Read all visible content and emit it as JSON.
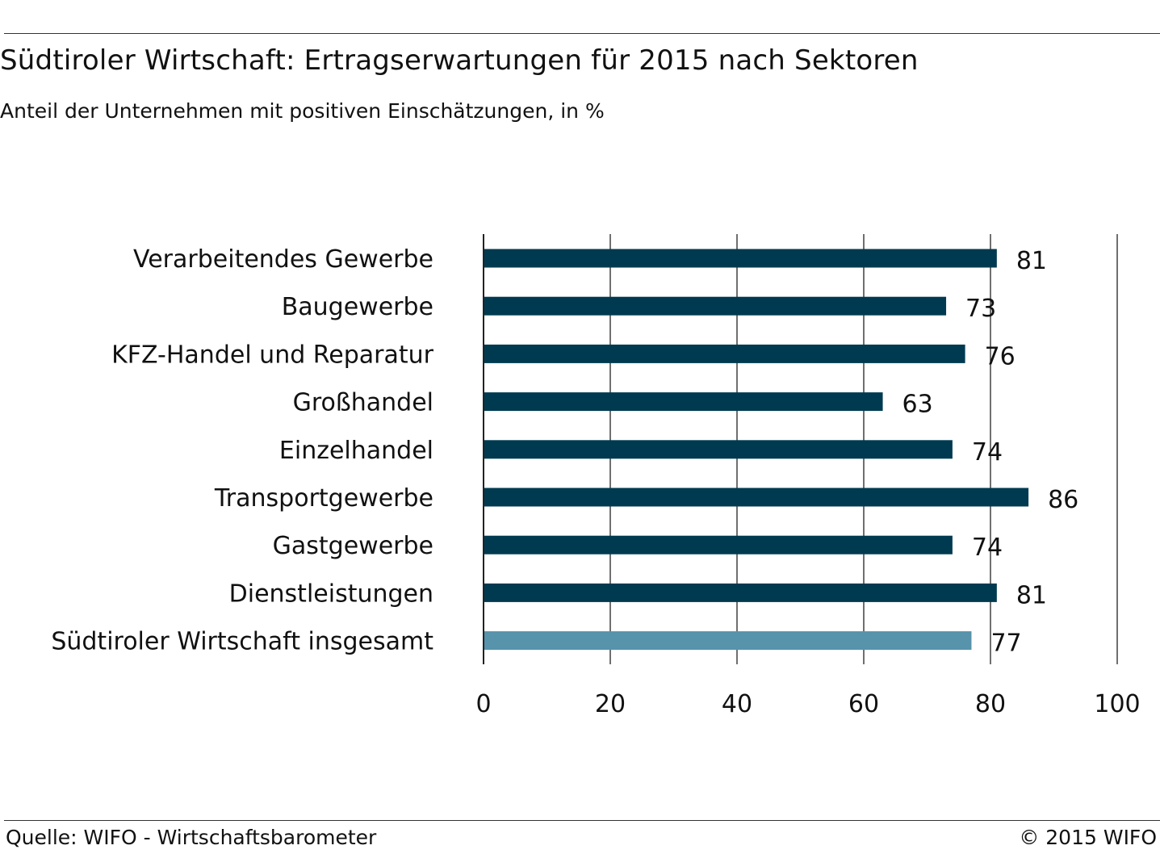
{
  "header": {
    "title": "Südtiroler Wirtschaft: Ertragserwartungen für 2015 nach Sektoren",
    "subtitle": "Anteil der Unternehmen mit positiven Einschätzungen, in %"
  },
  "footer": {
    "source": "Quelle: WIFO - Wirtschaftsbarometer",
    "copyright": "© 2015 WIFO"
  },
  "colors": {
    "bar_primary": "#003a50",
    "bar_total": "#5793ab",
    "grid": "#222222"
  },
  "chart_data": {
    "type": "bar",
    "orientation": "horizontal",
    "title": "Südtiroler Wirtschaft: Ertragserwartungen für 2015 nach Sektoren",
    "subtitle": "Anteil der Unternehmen mit positiven Einschätzungen, in %",
    "categories": [
      "Verarbeitendes Gewerbe",
      "Baugewerbe",
      "KFZ-Handel und Reparatur",
      "Großhandel",
      "Einzelhandel",
      "Transportgewerbe",
      "Gastgewerbe",
      "Dienstleistungen",
      "Südtiroler Wirtschaft insgesamt"
    ],
    "values": [
      81,
      73,
      76,
      63,
      74,
      86,
      74,
      81,
      77
    ],
    "data_labels": [
      "81",
      "73",
      "76",
      "63",
      "74",
      "86",
      "74",
      "81",
      "77"
    ],
    "highlight_category": "Südtiroler Wirtschaft insgesamt",
    "xlim": [
      0,
      100
    ],
    "xticks": [
      0,
      20,
      40,
      60,
      80,
      100
    ],
    "xtick_labels": [
      "0",
      "20",
      "40",
      "60",
      "80",
      "100"
    ],
    "grid": true,
    "legend": false
  }
}
